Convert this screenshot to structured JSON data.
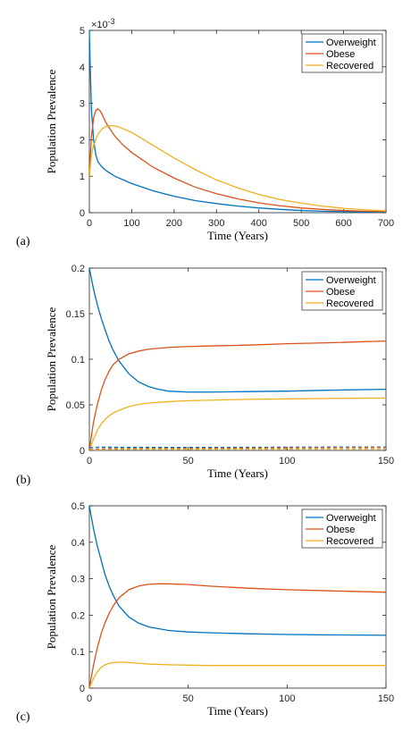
{
  "chart_data": [
    {
      "type": "line",
      "panel_label": "(a)",
      "xlabel": "Time (Years)",
      "ylabel": "Population Prevalence",
      "exponent_label": "×10",
      "exponent_power": "-3",
      "xlim": [
        0,
        700
      ],
      "ylim": [
        0,
        5
      ],
      "xticks": [
        "0",
        "100",
        "200",
        "300",
        "400",
        "500",
        "600",
        "700"
      ],
      "yticks": [
        "0",
        "1",
        "2",
        "3",
        "4",
        "5"
      ],
      "legend_position": "top-right",
      "series": [
        {
          "name": "Overweight",
          "color": "#0072BD",
          "x": [
            0,
            2,
            5,
            10,
            15,
            20,
            30,
            40,
            60,
            80,
            100,
            150,
            200,
            250,
            300,
            350,
            400,
            450,
            500,
            550,
            600,
            650,
            700
          ],
          "y": [
            5.0,
            4.0,
            2.8,
            2.0,
            1.6,
            1.4,
            1.25,
            1.15,
            1.0,
            0.9,
            0.8,
            0.6,
            0.45,
            0.33,
            0.25,
            0.18,
            0.13,
            0.09,
            0.06,
            0.04,
            0.03,
            0.02,
            0.01
          ]
        },
        {
          "name": "Obese",
          "color": "#D95319",
          "x": [
            0,
            5,
            10,
            15,
            20,
            25,
            30,
            40,
            60,
            80,
            100,
            150,
            200,
            250,
            300,
            350,
            400,
            450,
            500,
            550,
            600,
            650,
            700
          ],
          "y": [
            1.0,
            2.1,
            2.6,
            2.8,
            2.85,
            2.8,
            2.7,
            2.45,
            2.1,
            1.85,
            1.65,
            1.25,
            0.95,
            0.7,
            0.52,
            0.38,
            0.27,
            0.19,
            0.13,
            0.09,
            0.06,
            0.04,
            0.03
          ]
        },
        {
          "name": "Recovered",
          "color": "#EDB120",
          "x": [
            0,
            5,
            10,
            20,
            30,
            40,
            50,
            60,
            70,
            80,
            100,
            150,
            200,
            250,
            300,
            350,
            400,
            450,
            500,
            550,
            600,
            650,
            700
          ],
          "y": [
            1.0,
            1.6,
            1.85,
            2.15,
            2.3,
            2.37,
            2.39,
            2.38,
            2.35,
            2.3,
            2.2,
            1.85,
            1.5,
            1.18,
            0.9,
            0.68,
            0.5,
            0.36,
            0.26,
            0.18,
            0.12,
            0.08,
            0.05
          ]
        }
      ]
    },
    {
      "type": "line",
      "panel_label": "(b)",
      "xlabel": "Time (Years)",
      "ylabel": "Population Prevalence",
      "xlim": [
        0,
        150
      ],
      "ylim": [
        0,
        0.2
      ],
      "xticks": [
        "0",
        "50",
        "100",
        "150"
      ],
      "yticks": [
        "0",
        "0.05",
        "0.1",
        "0.15",
        "0.2"
      ],
      "legend_position": "top-right",
      "series": [
        {
          "name": "Overweight",
          "color": "#0072BD",
          "x": [
            0,
            2,
            4,
            6,
            8,
            10,
            12,
            15,
            20,
            25,
            30,
            35,
            40,
            50,
            60,
            80,
            100,
            120,
            150
          ],
          "y": [
            0.2,
            0.178,
            0.16,
            0.145,
            0.132,
            0.12,
            0.11,
            0.098,
            0.084,
            0.075,
            0.07,
            0.067,
            0.065,
            0.064,
            0.064,
            0.0645,
            0.065,
            0.066,
            0.067
          ]
        },
        {
          "name": "Obese",
          "color": "#D95319",
          "x": [
            0,
            2,
            4,
            6,
            8,
            10,
            12,
            15,
            20,
            25,
            30,
            40,
            50,
            60,
            80,
            100,
            120,
            150
          ],
          "y": [
            0.0,
            0.03,
            0.05,
            0.066,
            0.078,
            0.087,
            0.094,
            0.1,
            0.106,
            0.109,
            0.111,
            0.113,
            0.114,
            0.1145,
            0.1155,
            0.117,
            0.118,
            0.12
          ]
        },
        {
          "name": "Recovered",
          "color": "#EDB120",
          "x": [
            0,
            2,
            4,
            6,
            8,
            10,
            12,
            15,
            20,
            25,
            30,
            40,
            50,
            60,
            80,
            100,
            120,
            150
          ],
          "y": [
            0.0,
            0.012,
            0.022,
            0.029,
            0.034,
            0.038,
            0.041,
            0.044,
            0.048,
            0.0505,
            0.052,
            0.0535,
            0.0545,
            0.055,
            0.056,
            0.0565,
            0.057,
            0.0575
          ]
        },
        {
          "name": "",
          "color": "#0072BD",
          "dashed": true,
          "x": [
            0,
            5,
            10,
            20,
            40,
            60,
            80,
            100,
            120,
            150
          ],
          "y": [
            0.003,
            0.0035,
            0.0035,
            0.0034,
            0.0033,
            0.0033,
            0.0034,
            0.0035,
            0.0036,
            0.0037
          ]
        },
        {
          "name": "",
          "color": "#D95319",
          "dashed": true,
          "x": [
            0,
            5,
            10,
            20,
            40,
            60,
            80,
            100,
            120,
            150
          ],
          "y": [
            0.001,
            0.0015,
            0.002,
            0.0022,
            0.0023,
            0.0024,
            0.0026,
            0.0028,
            0.003,
            0.0032
          ]
        },
        {
          "name": "",
          "color": "#EDB120",
          "dashed": true,
          "x": [
            0,
            5,
            10,
            20,
            40,
            60,
            80,
            100,
            120,
            150
          ],
          "y": [
            0.0,
            0.0006,
            0.001,
            0.0012,
            0.0013,
            0.0013,
            0.0014,
            0.0014,
            0.0015,
            0.0015
          ]
        }
      ]
    },
    {
      "type": "line",
      "panel_label": "(c)",
      "xlabel": "Time (Years)",
      "ylabel": "Population Prevalence",
      "xlim": [
        0,
        150
      ],
      "ylim": [
        0,
        0.5
      ],
      "xticks": [
        "0",
        "50",
        "100",
        "150"
      ],
      "yticks": [
        "0",
        "0.1",
        "0.2",
        "0.3",
        "0.4",
        "0.5"
      ],
      "legend_position": "top-right",
      "series": [
        {
          "name": "Overweight",
          "color": "#0072BD",
          "x": [
            0,
            2,
            4,
            6,
            8,
            10,
            12,
            15,
            20,
            25,
            30,
            40,
            50,
            60,
            80,
            100,
            120,
            150
          ],
          "y": [
            0.5,
            0.44,
            0.39,
            0.35,
            0.31,
            0.28,
            0.255,
            0.225,
            0.195,
            0.178,
            0.168,
            0.158,
            0.154,
            0.152,
            0.149,
            0.147,
            0.146,
            0.145
          ]
        },
        {
          "name": "Obese",
          "color": "#D95319",
          "x": [
            0,
            2,
            4,
            6,
            8,
            10,
            12,
            15,
            20,
            25,
            30,
            35,
            40,
            50,
            60,
            80,
            100,
            120,
            150
          ],
          "y": [
            0.0,
            0.06,
            0.11,
            0.15,
            0.18,
            0.205,
            0.225,
            0.248,
            0.27,
            0.28,
            0.285,
            0.286,
            0.286,
            0.284,
            0.28,
            0.274,
            0.27,
            0.267,
            0.263
          ]
        },
        {
          "name": "Recovered",
          "color": "#EDB120",
          "x": [
            0,
            2,
            4,
            6,
            8,
            10,
            12,
            15,
            18,
            20,
            25,
            30,
            40,
            50,
            60,
            80,
            100,
            120,
            150
          ],
          "y": [
            0.0,
            0.025,
            0.045,
            0.057,
            0.064,
            0.068,
            0.07,
            0.071,
            0.071,
            0.07,
            0.068,
            0.066,
            0.064,
            0.063,
            0.062,
            0.062,
            0.062,
            0.062,
            0.062
          ]
        }
      ]
    }
  ]
}
